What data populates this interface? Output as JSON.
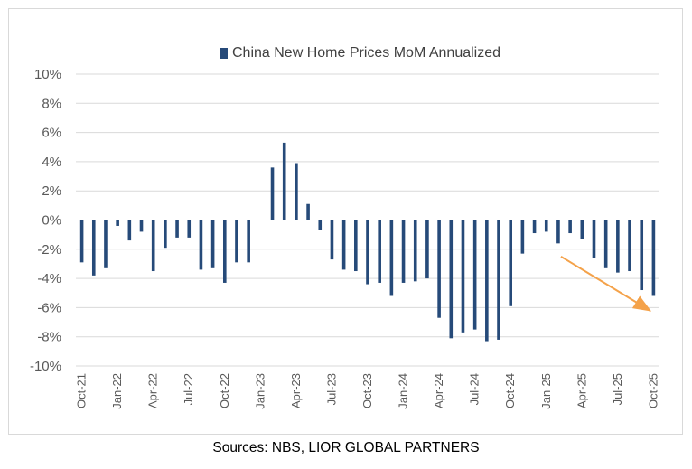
{
  "colors": {
    "bar": "#264a79",
    "arrow": "#f4a24a",
    "grid": "#d9d9d9",
    "axis": "#bfbfbf"
  },
  "source_note": "Sources: NBS, LIOR GLOBAL PARTNERS",
  "chart_data": {
    "type": "bar",
    "title": "",
    "legend": {
      "position": "top",
      "entries": [
        "China New Home Prices MoM Annualized"
      ]
    },
    "ylim": [
      -10,
      10
    ],
    "yticks": [
      10,
      8,
      6,
      4,
      2,
      0,
      -2,
      -4,
      -6,
      -8,
      -10
    ],
    "ytick_labels": [
      "10%",
      "8%",
      "6%",
      "4%",
      "2%",
      "0%",
      "-2%",
      "-4%",
      "-6%",
      "-8%",
      "-10%"
    ],
    "grid": true,
    "xlabel": "",
    "ylabel": "",
    "categories": [
      "Oct-21",
      "Nov-21",
      "Dec-21",
      "Jan-22",
      "Feb-22",
      "Mar-22",
      "Apr-22",
      "May-22",
      "Jun-22",
      "Jul-22",
      "Aug-22",
      "Sep-22",
      "Oct-22",
      "Nov-22",
      "Dec-22",
      "Jan-23",
      "Feb-23",
      "Mar-23",
      "Apr-23",
      "May-23",
      "Jun-23",
      "Jul-23",
      "Aug-23",
      "Sep-23",
      "Oct-23",
      "Nov-23",
      "Dec-23",
      "Jan-24",
      "Feb-24",
      "Mar-24",
      "Apr-24",
      "May-24",
      "Jun-24",
      "Jul-24",
      "Aug-24",
      "Sep-24",
      "Oct-24",
      "Nov-24",
      "Dec-24",
      "Jan-25",
      "Feb-25",
      "Mar-25",
      "Apr-25",
      "May-25",
      "Jun-25",
      "Jul-25",
      "Aug-25",
      "Sep-25",
      "Oct-25"
    ],
    "xtick_labels": [
      "Oct-21",
      "Jan-22",
      "Apr-22",
      "Jul-22",
      "Oct-22",
      "Jan-23",
      "Apr-23",
      "Jul-23",
      "Oct-23",
      "Jan-24",
      "Apr-24",
      "Jul-24",
      "Oct-24",
      "Jan-25",
      "Apr-25",
      "Jul-25",
      "Oct-25"
    ],
    "series": [
      {
        "name": "China New Home Prices MoM Annualized",
        "values": [
          -2.9,
          -3.8,
          -3.3,
          -0.4,
          -1.4,
          -0.8,
          -3.5,
          -1.9,
          -1.2,
          -1.2,
          -3.4,
          -3.3,
          -4.3,
          -2.9,
          -2.9,
          0.0,
          3.6,
          5.3,
          3.9,
          1.1,
          -0.7,
          -2.7,
          -3.4,
          -3.5,
          -4.4,
          -4.3,
          -5.2,
          -4.3,
          -4.2,
          -4.0,
          -6.7,
          -8.1,
          -7.7,
          -7.5,
          -8.3,
          -8.2,
          -5.9,
          -2.3,
          -0.9,
          -0.8,
          -1.6,
          -0.9,
          -1.3,
          -2.6,
          -3.3,
          -3.6,
          -3.5,
          -4.8,
          -5.2
        ]
      }
    ],
    "annotations": [
      {
        "type": "arrow",
        "from_category": "Feb-25",
        "from_value": -2.5,
        "to_category": "Oct-25",
        "to_value": -6.2,
        "note": "downward trend arrow"
      }
    ]
  }
}
